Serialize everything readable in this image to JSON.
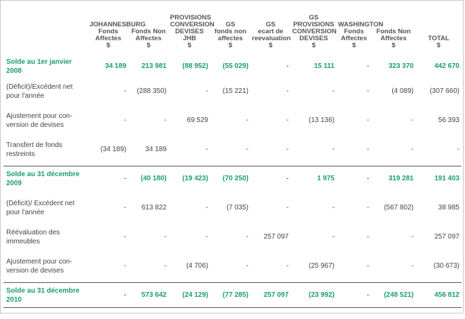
{
  "headers": [
    {
      "key": "label",
      "lines": []
    },
    {
      "key": "jhb_affectes",
      "lines": [
        "JOHANNESBURG",
        "Fonds",
        "Affectes",
        "$"
      ]
    },
    {
      "key": "jhb_non_affectes",
      "lines": [
        "",
        "Fonds Non",
        "Affectes",
        "$"
      ]
    },
    {
      "key": "prov_conv_jhb",
      "lines": [
        "PROVISIONS",
        "CONVERSION",
        "DEVISES",
        "JHB",
        "$"
      ]
    },
    {
      "key": "gs_non_affectes",
      "lines": [
        "GS",
        "fonds non",
        "affectes",
        "$"
      ]
    },
    {
      "key": "gs_ecart",
      "lines": [
        "GS",
        "ecart de",
        "reevaluation",
        "$"
      ]
    },
    {
      "key": "gs_prov_conv",
      "lines": [
        "GS",
        "PROVISIONS",
        "CONVERSION",
        "DEVISES",
        "$"
      ]
    },
    {
      "key": "wash_affectes",
      "lines": [
        "WASHINGTON",
        "Fonds",
        "Affectes",
        "$"
      ]
    },
    {
      "key": "wash_non_affectes",
      "lines": [
        "",
        "Fonds Non",
        "Affectes",
        "$"
      ]
    },
    {
      "key": "total",
      "lines": [
        "TOTAL",
        "$"
      ]
    }
  ],
  "rows": [
    {
      "style": "green",
      "label": [
        "Solde au 1er janvier",
        "2008"
      ],
      "values": [
        "34 189",
        "213 981",
        "(88 952)",
        "(55 029)",
        "-",
        "15 111",
        "-",
        "323 370",
        "442 670"
      ]
    },
    {
      "style": "",
      "label": [
        "(Déficit)/Excédent net",
        "pour l'année"
      ],
      "values": [
        "-",
        "(288 350)",
        "-",
        "(15 221)",
        "-",
        "-",
        "-",
        "(4 089)",
        "(307 660)"
      ]
    },
    {
      "style": "",
      "label": [
        "Ajustement pour con-",
        "version de devises"
      ],
      "values": [
        "-",
        "-",
        "69 529",
        "-",
        "-",
        "(13 136)",
        "-",
        "-",
        "56 393"
      ]
    },
    {
      "style": "",
      "label": [
        "Transfert de fonds",
        "restreints"
      ],
      "values": [
        "(34 189)",
        "34 189",
        "-",
        "-",
        "-",
        "-",
        "-",
        "-",
        "-"
      ]
    },
    {
      "style": "green sep",
      "label": [
        "Solde au 31 décembre",
        "2009"
      ],
      "values": [
        "-",
        "(40 180)",
        "(19 423)",
        "(70 250)",
        "-",
        "1 975",
        "-",
        "319 281",
        "191 403"
      ]
    },
    {
      "style": "",
      "label": [
        "(Déficit)/ Excédent net",
        "pour l'année"
      ],
      "values": [
        "-",
        "613 822",
        "-",
        "(7 035)",
        "-",
        "-",
        "-",
        "(567 802)",
        "38 985"
      ]
    },
    {
      "style": "",
      "label": [
        "Réévaluation des",
        "immeubles"
      ],
      "values": [
        "-",
        "-",
        "-",
        "-",
        "257 097",
        "-",
        "-",
        "-",
        "257 097"
      ]
    },
    {
      "style": "",
      "label": [
        "Ajustement pour con-",
        "version de devises"
      ],
      "values": [
        "-",
        "-",
        "(4 706)",
        "-",
        "-",
        "(25 967)",
        "-",
        "-",
        "(30 673)"
      ]
    },
    {
      "style": "green sep lastsep",
      "label": [
        "Solde au 31 décembre",
        "2010"
      ],
      "values": [
        "-",
        "573 642",
        "(24 129)",
        "(77 285)",
        "257 097",
        "(23 992)",
        "-",
        "(248 521)",
        "456 812"
      ]
    }
  ]
}
